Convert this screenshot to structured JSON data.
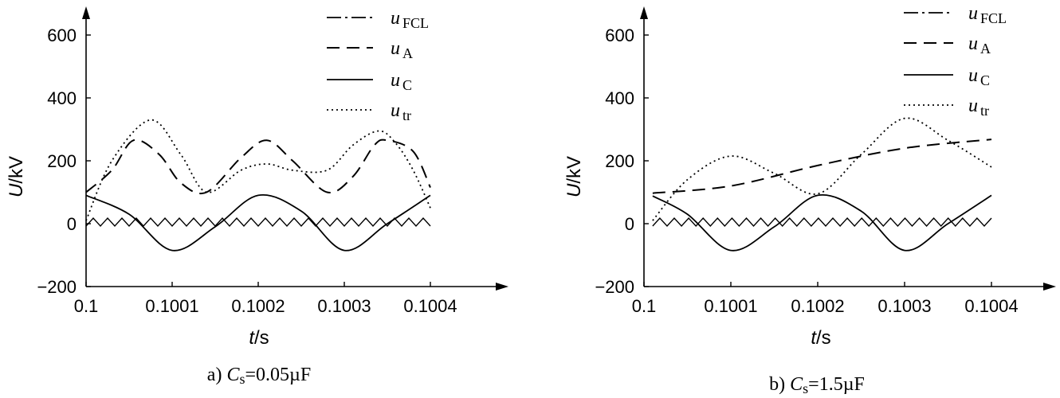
{
  "chart_data": [
    {
      "type": "line",
      "caption": {
        "prefix": "a) ",
        "var": "C",
        "sub": "s",
        "value": "=0.05µF"
      },
      "xlabel": {
        "var": "t",
        "unit": "/s"
      },
      "ylabel": {
        "var": "U",
        "unit": "/kV"
      },
      "xlim": [
        0.1,
        0.1004
      ],
      "ylim": [
        -200,
        600
      ],
      "xticks": [
        "0.1",
        "0.1001",
        "0.1002",
        "0.1003",
        "0.1004"
      ],
      "yticks": [
        "−200",
        "0",
        "200",
        "400",
        "600"
      ],
      "legend_position": "top-right",
      "series": [
        {
          "name": "FCL",
          "style": "dash-dot",
          "x": [
            0.1,
            0.1001,
            0.1002,
            0.1003,
            0.1004
          ],
          "y": [
            5,
            2,
            5,
            2,
            5
          ]
        },
        {
          "name": "A",
          "style": "dashed",
          "x": [
            0.1,
            0.10003,
            0.100055,
            0.100085,
            0.10011,
            0.10014,
            0.10018,
            0.10021,
            0.10024,
            0.10028,
            0.10031,
            0.100335,
            0.10035,
            0.10038,
            0.1004
          ],
          "y": [
            100,
            170,
            265,
            220,
            130,
            100,
            210,
            265,
            200,
            100,
            150,
            250,
            265,
            230,
            115
          ]
        },
        {
          "name": "C",
          "style": "solid",
          "x": [
            0.1,
            0.10005,
            0.1001,
            0.10015,
            0.1002,
            0.10025,
            0.1003,
            0.10035,
            0.1004
          ],
          "y": [
            90,
            30,
            -85,
            -10,
            90,
            40,
            -85,
            0,
            90
          ]
        },
        {
          "name": "tr",
          "style": "dotted",
          "x": [
            0.1,
            0.10003,
            0.100075,
            0.10011,
            0.10014,
            0.10018,
            0.10021,
            0.10024,
            0.10028,
            0.10031,
            0.10034,
            0.10036,
            0.10038,
            0.1004
          ],
          "y": [
            10,
            200,
            330,
            220,
            100,
            170,
            190,
            170,
            170,
            250,
            295,
            255,
            170,
            50
          ]
        }
      ]
    },
    {
      "type": "line",
      "caption": {
        "prefix": "b) ",
        "var": "C",
        "sub": "s",
        "value": "=1.5µF"
      },
      "xlabel": {
        "var": "t",
        "unit": "/s"
      },
      "ylabel": {
        "var": "U",
        "unit": "/kV"
      },
      "xlim": [
        0.1,
        0.1004
      ],
      "ylim": [
        -200,
        600
      ],
      "xticks": [
        "0.1",
        "0.1001",
        "0.1002",
        "0.1003",
        "0.1004"
      ],
      "yticks": [
        "−200",
        "0",
        "200",
        "400",
        "600"
      ],
      "legend_position": "top-right",
      "series": [
        {
          "name": "FCL",
          "style": "dash-dot",
          "x": [
            0.10001,
            0.1004
          ],
          "y": [
            5,
            5
          ]
        },
        {
          "name": "A",
          "style": "dashed",
          "x": [
            0.10001,
            0.1001,
            0.1002,
            0.1003,
            0.1004
          ],
          "y": [
            97,
            120,
            185,
            240,
            268
          ]
        },
        {
          "name": "C",
          "style": "solid",
          "x": [
            0.10001,
            0.10005,
            0.1001,
            0.10015,
            0.1002,
            0.10025,
            0.1003,
            0.10035,
            0.1004
          ],
          "y": [
            88,
            30,
            -85,
            -10,
            90,
            40,
            -85,
            0,
            90
          ]
        },
        {
          "name": "tr",
          "style": "dotted",
          "x": [
            0.10001,
            0.10005,
            0.1001,
            0.10015,
            0.1002,
            0.10025,
            0.1003,
            0.10035,
            0.1004
          ],
          "y": [
            10,
            140,
            215,
            160,
            95,
            220,
            335,
            265,
            180
          ]
        }
      ]
    }
  ]
}
